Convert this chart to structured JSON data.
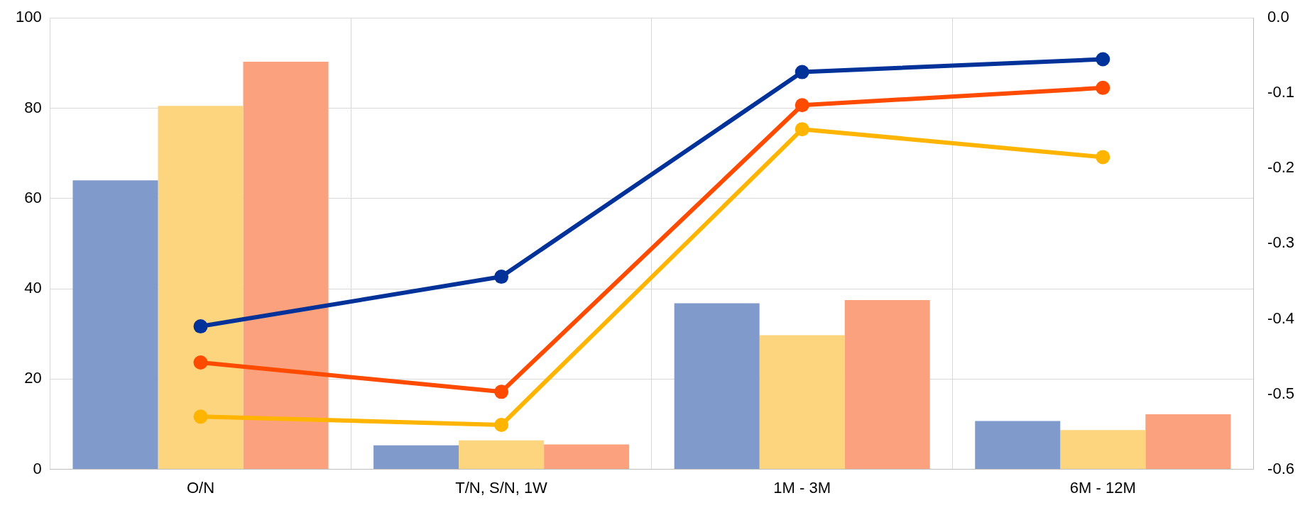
{
  "chart_data": {
    "type": "bar",
    "categories": [
      "O/N",
      "T/N, S/N, 1W",
      "1M - 3M",
      "6M - 12M"
    ],
    "series": [
      {
        "color": "#7f9acb",
        "values": [
          64,
          5.3,
          36.8,
          10.7
        ]
      },
      {
        "color": "#fdd57e",
        "values": [
          80.5,
          6.4,
          29.7,
          8.7
        ]
      },
      {
        "color": "#fca17d",
        "values": [
          90.3,
          5.5,
          37.5,
          12.2
        ]
      },
      {
        "type": "line",
        "axis": "y2",
        "color": "#003299",
        "values": [
          -0.41,
          -0.344,
          -0.072,
          -0.055
        ]
      },
      {
        "type": "line",
        "axis": "y2",
        "color": "#ff4b00",
        "values": [
          -0.458,
          -0.497,
          -0.116,
          -0.093
        ]
      },
      {
        "type": "line",
        "axis": "y2",
        "color": "#ffb400",
        "values": [
          -0.53,
          -0.541,
          -0.148,
          -0.185
        ]
      }
    ],
    "ylim": [
      0,
      100
    ],
    "yticks": [
      0,
      20,
      40,
      60,
      80,
      100
    ],
    "y2lim": [
      -0.6,
      0
    ],
    "y2ticks": [
      {
        "value": -0.6,
        "label": "-0.6"
      },
      {
        "value": -0.5,
        "label": "-0.5"
      },
      {
        "value": -0.4,
        "label": "-0.4"
      },
      {
        "value": -0.3,
        "label": "-0.3"
      },
      {
        "value": -0.2,
        "label": "-0.2"
      },
      {
        "value": -0.1,
        "label": "-0.1"
      },
      {
        "value": 0,
        "label": "0.0"
      }
    ],
    "grid": true,
    "legend": false,
    "marker": "circle",
    "line_style": "solid"
  }
}
